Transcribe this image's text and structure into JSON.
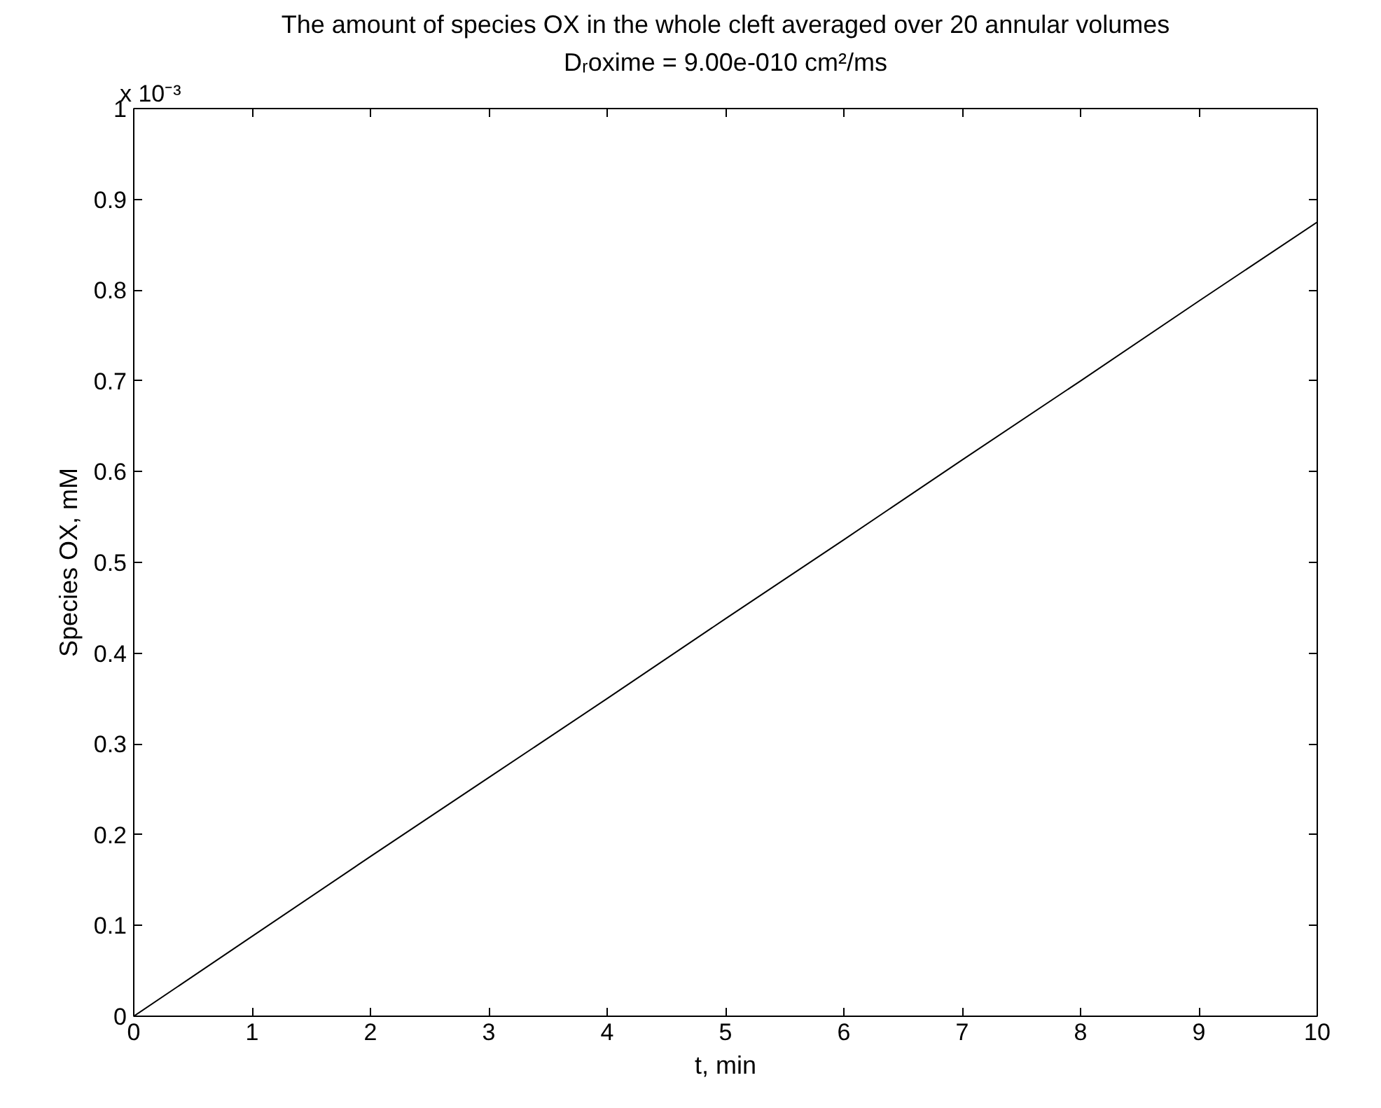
{
  "chart_data": {
    "type": "line",
    "title": "The amount of species OX in the whole cleft averaged over 20 annular volumes",
    "subtitle": "Dᵣoxime = 9.00e-010 cm²/ms",
    "xlabel": "t, min",
    "ylabel": "Species OX, mM",
    "annotations": [
      "x 10⁻³"
    ],
    "x": [
      0,
      1,
      2,
      3,
      4,
      5,
      6,
      7,
      8,
      9,
      10
    ],
    "series": [
      {
        "color": "#000000",
        "values": [
          0,
          0.088,
          0.176,
          0.263,
          0.35,
          0.438,
          0.525,
          0.613,
          0.7,
          0.788,
          0.875
        ]
      }
    ],
    "xlim": [
      0,
      10
    ],
    "xticks": [
      0,
      1,
      2,
      3,
      4,
      5,
      6,
      7,
      8,
      9,
      10
    ],
    "ylim": [
      0,
      1
    ],
    "yticks": [
      0,
      0.1,
      0.2,
      0.3,
      0.4,
      0.5,
      0.6,
      0.7,
      0.8,
      0.9,
      1
    ],
    "grid": false,
    "marker": "none",
    "line_style": "solid"
  }
}
